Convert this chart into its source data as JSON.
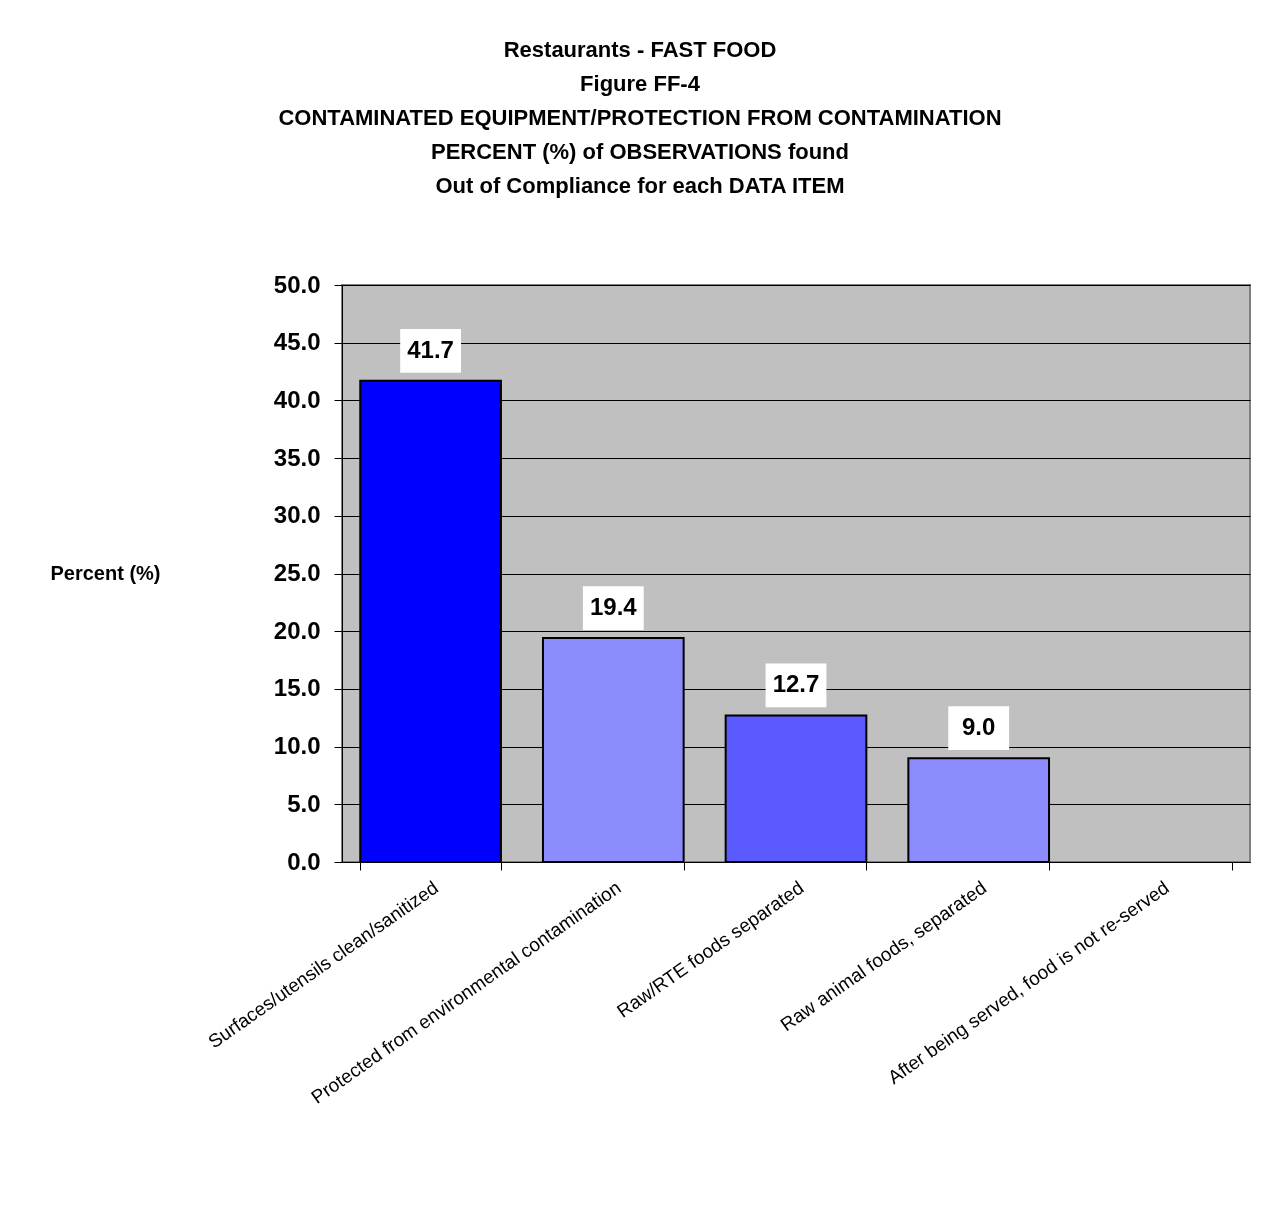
{
  "chart_data": {
    "type": "bar",
    "title": "Restaurants - FAST FOOD\nFigure FF-4\nCONTAMINATED EQUIPMENT/PROTECTION FROM CONTAMINATION\nPERCENT (%) of OBSERVATIONS found\nOut of Compliance for each DATA ITEM",
    "ylabel": "Percent (%)",
    "categories": [
      "Surfaces/utensils clean/sanitized",
      "Protected from environmental contamination",
      "Raw/RTE foods separated",
      "Raw animal foods, separated",
      "After being served, food is not re-served"
    ],
    "values": [
      41.7,
      19.4,
      12.7,
      9.0,
      null
    ],
    "value_labels": [
      "41.7",
      "19.4",
      "12.7",
      "9.0",
      null
    ],
    "colors": [
      "#0000ff",
      "#8c8cff",
      "#5a5aff",
      "#8c8cff",
      "#0000ff"
    ],
    "ylim": [
      0,
      50
    ],
    "yticks": [
      {
        "value": 0,
        "label": "0.0"
      },
      {
        "value": 5,
        "label": "5.0"
      },
      {
        "value": 10,
        "label": "10.0"
      },
      {
        "value": 15,
        "label": "15.0"
      },
      {
        "value": 20,
        "label": "20.0"
      },
      {
        "value": 25,
        "label": "25.0"
      },
      {
        "value": 30,
        "label": "30.0"
      },
      {
        "value": 35,
        "label": "35.0"
      },
      {
        "value": 40,
        "label": "40.0"
      },
      {
        "value": 45,
        "label": "45.0"
      },
      {
        "value": 50,
        "label": "50.0"
      }
    ],
    "grid": "y"
  }
}
